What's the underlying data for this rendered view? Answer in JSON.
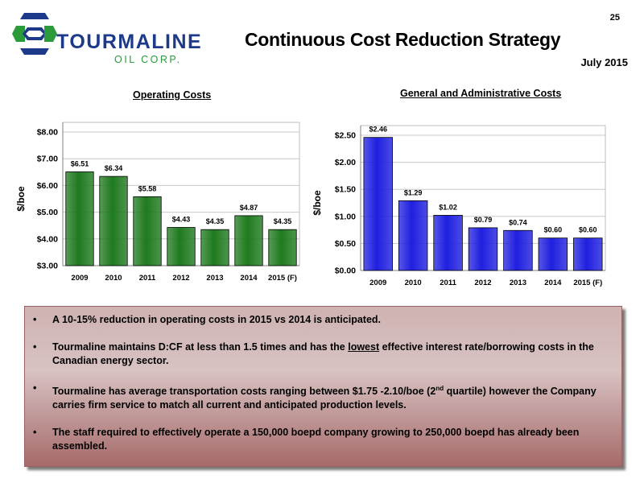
{
  "header": {
    "logo_name": "TOURMALINE",
    "logo_sub": "OIL CORP.",
    "page_number": "25",
    "title": "Continuous Cost Reduction Strategy",
    "date": "July 2015"
  },
  "colors": {
    "op_bar": "#1f7a1f",
    "ga_bar": "#1f1fe0",
    "logo_blue": "#1d3a8a",
    "logo_green": "#2a9a3a",
    "bullet_box": "#c9a4a4"
  },
  "chart_data": [
    {
      "type": "bar",
      "title": "Operating Costs",
      "ylabel": "$/boe",
      "categories": [
        "2009",
        "2010",
        "2011",
        "2012",
        "2013",
        "2014",
        "2015 (F)"
      ],
      "values": [
        6.51,
        6.34,
        5.58,
        4.43,
        4.35,
        4.87,
        4.35
      ],
      "value_labels": [
        "$6.51",
        "$6.34",
        "$5.58",
        "$4.43",
        "$4.35",
        "$4.87",
        "$4.35"
      ],
      "yticks": [
        "$3.00",
        "$4.00",
        "$5.00",
        "$6.00",
        "$7.00",
        "$8.00"
      ],
      "ylim": [
        3,
        8
      ],
      "grid": true
    },
    {
      "type": "bar",
      "title": "General and Administrative Costs",
      "ylabel": "$/boe",
      "categories": [
        "2009",
        "2010",
        "2011",
        "2012",
        "2013",
        "2014",
        "2015 (F)"
      ],
      "values": [
        2.46,
        1.29,
        1.02,
        0.79,
        0.74,
        0.6,
        0.6
      ],
      "value_labels": [
        "$2.46",
        "$1.29",
        "$1.02",
        "$0.79",
        "$0.74",
        "$0.60",
        "$0.60"
      ],
      "yticks": [
        "$0.00",
        "$0.50",
        "$1.00",
        "$1.50",
        "$2.00",
        "$2.50"
      ],
      "ylim": [
        0,
        2.5
      ],
      "grid": true
    }
  ],
  "bullets": {
    "b1": "A 10-15% reduction in operating costs in 2015 vs 2014 is anticipated.",
    "b2_pre": "Tourmaline maintains D:CF at less than 1.5 times and has the ",
    "b2_u": "lowest",
    "b2_post": " effective interest rate/borrowing costs in the Canadian energy sector.",
    "b3_pre": "Tourmaline has average transportation costs ranging between $1.75 -2.10/boe (2",
    "b3_sup": "nd",
    "b3_post": " quartile) however the Company  carries firm service to match all current and anticipated production levels.",
    "b4": "The staff required to effectively operate a 150,000 boepd company growing to 250,000 boepd has already been assembled."
  }
}
